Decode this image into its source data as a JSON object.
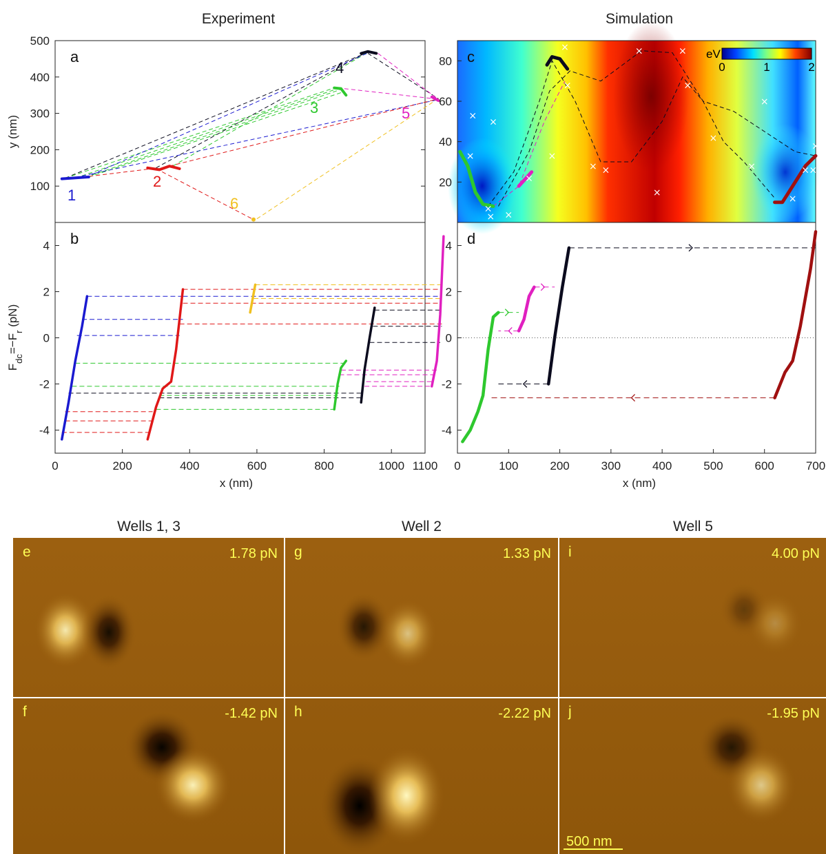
{
  "titles": {
    "experiment": "Experiment",
    "simulation": "Simulation"
  },
  "colors": {
    "blue": "#1a1ad0",
    "red": "#e01818",
    "green": "#2ec82e",
    "black": "#0b0b1e",
    "magenta": "#e020c0",
    "yellow": "#f0c020",
    "darkred": "#a01010",
    "afm_mid": "#9a5e0c"
  },
  "panel_labels": {
    "a": "a",
    "b": "b",
    "c": "c",
    "d": "d"
  },
  "axes": {
    "a_ylabel": "y (nm)",
    "b_ylabel_main": "F",
    "b_ylabel_sub1": "dc",
    "b_ylabel_mid": "=−F",
    "b_ylabel_sub2": "r",
    "b_ylabel_tail": " (pN)",
    "x_label_left": "x (nm)",
    "x_label_right": "x (nm)"
  },
  "colorbar": {
    "unit": "eV",
    "ticks": [
      "0",
      "1",
      "2"
    ]
  },
  "image_panels": {
    "col_titles": [
      "Wells 1, 3",
      "Well 2",
      "Well 5"
    ],
    "panels": [
      {
        "label": "e",
        "force": "1.78 pN"
      },
      {
        "label": "g",
        "force": "1.33 pN"
      },
      {
        "label": "i",
        "force": "4.00 pN"
      },
      {
        "label": "f",
        "force": "-1.42 pN"
      },
      {
        "label": "h",
        "force": "-2.22 pN"
      },
      {
        "label": "j",
        "force": "-1.95 pN"
      }
    ],
    "scale_bar": "500 nm"
  },
  "chart_data": [
    {
      "panel": "a",
      "type": "scatter",
      "title": "Experiment",
      "xlabel": "",
      "ylabel": "y (nm)",
      "xlim": [
        0,
        1100
      ],
      "ylim": [
        0,
        500
      ],
      "yticks": [
        100,
        200,
        300,
        400,
        500
      ],
      "wells": [
        {
          "name": "1",
          "color": "blue",
          "points": [
            [
              20,
              120
            ],
            [
              100,
              125
            ]
          ]
        },
        {
          "name": "2",
          "color": "red",
          "points": [
            [
              275,
              150
            ],
            [
              310,
              145
            ],
            [
              340,
              155
            ],
            [
              370,
              148
            ]
          ]
        },
        {
          "name": "3",
          "color": "green",
          "points": [
            [
              830,
              370
            ],
            [
              850,
              368
            ],
            [
              865,
              350
            ]
          ]
        },
        {
          "name": "4",
          "color": "black",
          "points": [
            [
              910,
              465
            ],
            [
              930,
              470
            ],
            [
              955,
              465
            ]
          ]
        },
        {
          "name": "5",
          "color": "magenta",
          "points": [
            [
              1120,
              345
            ],
            [
              1140,
              335
            ]
          ]
        },
        {
          "name": "6",
          "color": "yellow",
          "points": [
            [
              590,
              8
            ]
          ]
        }
      ],
      "transitions": [
        {
          "color": "black",
          "from": [
            30,
            122
          ],
          "to": [
            930,
            468
          ]
        },
        {
          "color": "black",
          "from": [
            300,
            150
          ],
          "to": [
            920,
            465
          ]
        },
        {
          "color": "black",
          "from": [
            930,
            465
          ],
          "to": [
            1140,
            340
          ]
        },
        {
          "color": "green",
          "from": [
            30,
            122
          ],
          "to": [
            830,
            370
          ]
        },
        {
          "color": "green",
          "from": [
            60,
            122
          ],
          "to": [
            840,
            368
          ]
        },
        {
          "color": "green",
          "from": [
            90,
            124
          ],
          "to": [
            850,
            366
          ]
        },
        {
          "color": "green",
          "from": [
            100,
            125
          ],
          "to": [
            860,
            360
          ]
        },
        {
          "color": "green",
          "from": [
            350,
            155
          ],
          "to": [
            930,
            468
          ]
        },
        {
          "color": "blue",
          "from": [
            40,
            120
          ],
          "to": [
            1140,
            338
          ]
        },
        {
          "color": "blue",
          "from": [
            90,
            124
          ],
          "to": [
            930,
            466
          ]
        },
        {
          "color": "red",
          "from": [
            40,
            120
          ],
          "to": [
            290,
            148
          ]
        },
        {
          "color": "red",
          "from": [
            340,
            155
          ],
          "to": [
            1140,
            340
          ]
        },
        {
          "color": "red",
          "from": [
            300,
            148
          ],
          "to": [
            590,
            8
          ]
        },
        {
          "color": "magenta",
          "from": [
            860,
            368
          ],
          "to": [
            1130,
            340
          ]
        },
        {
          "color": "magenta",
          "from": [
            960,
            465
          ],
          "to": [
            1140,
            338
          ]
        },
        {
          "color": "yellow",
          "from": [
            600,
            10
          ],
          "to": [
            1130,
            335
          ]
        }
      ]
    },
    {
      "panel": "b",
      "type": "line",
      "xlabel": "x (nm)",
      "ylabel": "F_dc = −F_r (pN)",
      "xlim": [
        0,
        1100
      ],
      "ylim": [
        -5,
        5
      ],
      "xticks": [
        0,
        200,
        400,
        600,
        800,
        1000,
        1100
      ],
      "yticks": [
        -4,
        -2,
        0,
        2,
        4
      ],
      "series": [
        {
          "name": "1",
          "color": "blue",
          "points": [
            [
              20,
              -4.4
            ],
            [
              40,
              -2.8
            ],
            [
              60,
              -1.0
            ],
            [
              80,
              0.5
            ],
            [
              95,
              1.8
            ]
          ]
        },
        {
          "name": "2",
          "color": "red",
          "points": [
            [
              275,
              -4.4
            ],
            [
              300,
              -3.0
            ],
            [
              320,
              -2.2
            ],
            [
              345,
              -1.9
            ],
            [
              360,
              -0.5
            ],
            [
              380,
              2.1
            ]
          ]
        },
        {
          "name": "3",
          "color": "green",
          "points": [
            [
              830,
              -3.1
            ],
            [
              840,
              -2.0
            ],
            [
              850,
              -1.3
            ],
            [
              865,
              -1.0
            ]
          ]
        },
        {
          "name": "4",
          "color": "black",
          "points": [
            [
              910,
              -2.8
            ],
            [
              920,
              -1.4
            ],
            [
              935,
              0.0
            ],
            [
              950,
              1.3
            ]
          ]
        },
        {
          "name": "5",
          "color": "magenta",
          "points": [
            [
              1120,
              -2.1
            ],
            [
              1135,
              -1.0
            ],
            [
              1145,
              1.0
            ],
            [
              1155,
              4.4
            ]
          ]
        },
        {
          "name": "6",
          "color": "yellow",
          "points": [
            [
              580,
              1.1
            ],
            [
              595,
              2.3
            ]
          ]
        }
      ],
      "hlines": [
        {
          "color": "blue",
          "y": 1.8,
          "x0": 95,
          "x1": 380
        },
        {
          "color": "blue",
          "y": 0.8,
          "x0": 80,
          "x1": 380
        },
        {
          "color": "blue",
          "y": 0.1,
          "x0": 65,
          "x1": 370
        },
        {
          "color": "blue",
          "y": 1.8,
          "x0": 380,
          "x1": 1150
        },
        {
          "color": "red",
          "y": 2.1,
          "x0": 380,
          "x1": 1150
        },
        {
          "color": "red",
          "y": 1.5,
          "x0": 380,
          "x1": 1150
        },
        {
          "color": "red",
          "y": 0.6,
          "x0": 370,
          "x1": 1150
        },
        {
          "color": "red",
          "y": -3.2,
          "x0": 30,
          "x1": 290
        },
        {
          "color": "red",
          "y": -3.6,
          "x0": 30,
          "x1": 290
        },
        {
          "color": "red",
          "y": -4.1,
          "x0": 20,
          "x1": 285
        },
        {
          "color": "yellow",
          "y": 2.3,
          "x0": 595,
          "x1": 1150
        },
        {
          "color": "yellow",
          "y": 1.7,
          "x0": 590,
          "x1": 1150
        },
        {
          "color": "green",
          "y": -1.1,
          "x0": 60,
          "x1": 865
        },
        {
          "color": "green",
          "y": -2.1,
          "x0": 50,
          "x1": 845
        },
        {
          "color": "green",
          "y": -2.5,
          "x0": 310,
          "x1": 840
        },
        {
          "color": "green",
          "y": -3.1,
          "x0": 300,
          "x1": 830
        },
        {
          "color": "black",
          "y": -2.4,
          "x0": 40,
          "x1": 915
        },
        {
          "color": "black",
          "y": -2.6,
          "x0": 310,
          "x1": 910
        },
        {
          "color": "black",
          "y": 1.2,
          "x0": 950,
          "x1": 1150
        },
        {
          "color": "black",
          "y": 0.5,
          "x0": 945,
          "x1": 1150
        },
        {
          "color": "black",
          "y": -0.2,
          "x0": 935,
          "x1": 1145
        },
        {
          "color": "magenta",
          "y": -1.4,
          "x0": 850,
          "x1": 1135
        },
        {
          "color": "magenta",
          "y": -1.6,
          "x0": 845,
          "x1": 1130
        },
        {
          "color": "magenta",
          "y": -2.1,
          "x0": 920,
          "x1": 1120
        },
        {
          "color": "magenta",
          "y": -1.9,
          "x0": 925,
          "x1": 1125
        }
      ]
    },
    {
      "panel": "c",
      "type": "heatmap",
      "title": "Simulation",
      "xlim": [
        0,
        700
      ],
      "ylim": [
        0,
        90
      ],
      "yticks": [
        20,
        40,
        60,
        80
      ],
      "colorbar": {
        "label": "eV",
        "range": [
          0,
          2
        ],
        "ticks": [
          0,
          1,
          2
        ]
      },
      "paths": [
        {
          "color": "green",
          "points": [
            [
              5,
              35
            ],
            [
              20,
              28
            ],
            [
              35,
              15
            ],
            [
              50,
              9
            ],
            [
              70,
              8
            ]
          ]
        },
        {
          "color": "magenta",
          "points": [
            [
              120,
              18
            ],
            [
              145,
              25
            ]
          ]
        },
        {
          "color": "black",
          "points": [
            [
              175,
              78
            ],
            [
              185,
              82
            ],
            [
              200,
              81
            ],
            [
              215,
              76
            ]
          ]
        },
        {
          "color": "darkred",
          "points": [
            [
              620,
              10
            ],
            [
              635,
              10
            ],
            [
              655,
              18
            ],
            [
              680,
              28
            ],
            [
              700,
              33
            ]
          ]
        }
      ],
      "dashed_paths": [
        {
          "color": "black",
          "points": [
            [
              60,
              8
            ],
            [
              110,
              25
            ],
            [
              160,
              60
            ],
            [
              185,
              80
            ],
            [
              230,
              60
            ],
            [
              280,
              30
            ],
            [
              340,
              30
            ],
            [
              400,
              50
            ],
            [
              440,
              72
            ],
            [
              480,
              60
            ],
            [
              520,
              40
            ],
            [
              560,
              30
            ],
            [
              620,
              12
            ]
          ]
        },
        {
          "color": "black",
          "points": [
            [
              80,
              8
            ],
            [
              140,
              35
            ],
            [
              180,
              65
            ],
            [
              220,
              75
            ],
            [
              280,
              70
            ],
            [
              360,
              85
            ],
            [
              420,
              84
            ],
            [
              480,
              60
            ],
            [
              540,
              55
            ],
            [
              600,
              45
            ],
            [
              660,
              35
            ],
            [
              700,
              33
            ]
          ]
        },
        {
          "color": "magenta",
          "points": [
            [
              70,
              8
            ],
            [
              120,
              18
            ],
            [
              170,
              50
            ],
            [
              210,
              70
            ]
          ]
        }
      ],
      "markers": [
        [
          30,
          53
        ],
        [
          70,
          50
        ],
        [
          25,
          33
        ],
        [
          60,
          7
        ],
        [
          65,
          3
        ],
        [
          100,
          4
        ],
        [
          140,
          22
        ],
        [
          210,
          87
        ],
        [
          215,
          68
        ],
        [
          185,
          33
        ],
        [
          265,
          28
        ],
        [
          290,
          26
        ],
        [
          390,
          15
        ],
        [
          355,
          85
        ],
        [
          440,
          85
        ],
        [
          450,
          68
        ],
        [
          500,
          42
        ],
        [
          575,
          28
        ],
        [
          600,
          60
        ],
        [
          655,
          12
        ],
        [
          680,
          26
        ],
        [
          695,
          26
        ],
        [
          700,
          38
        ]
      ]
    },
    {
      "panel": "d",
      "type": "line",
      "xlabel": "x (nm)",
      "xlim": [
        0,
        700
      ],
      "ylim": [
        -5,
        5
      ],
      "xticks": [
        0,
        100,
        200,
        300,
        400,
        500,
        600,
        700
      ],
      "yticks": [
        -4,
        -2,
        0,
        2,
        4
      ],
      "series": [
        {
          "color": "green",
          "points": [
            [
              10,
              -4.5
            ],
            [
              25,
              -4.0
            ],
            [
              40,
              -3.2
            ],
            [
              50,
              -2.5
            ],
            [
              60,
              -0.5
            ],
            [
              70,
              0.9
            ],
            [
              80,
              1.1
            ]
          ]
        },
        {
          "color": "magenta",
          "points": [
            [
              120,
              0.3
            ],
            [
              130,
              0.8
            ],
            [
              140,
              1.8
            ],
            [
              150,
              2.2
            ]
          ]
        },
        {
          "color": "black",
          "points": [
            [
              178,
              -2.0
            ],
            [
              190,
              0.0
            ],
            [
              205,
              2.2
            ],
            [
              218,
              3.9
            ]
          ]
        },
        {
          "color": "darkred",
          "points": [
            [
              620,
              -2.6
            ],
            [
              640,
              -1.5
            ],
            [
              655,
              -1.0
            ],
            [
              670,
              0.5
            ],
            [
              690,
              3.0
            ],
            [
              700,
              4.6
            ]
          ]
        }
      ],
      "arrows": [
        {
          "color": "black",
          "y": 3.9,
          "x0": 218,
          "x1": 700,
          "direction": "right"
        },
        {
          "color": "green",
          "y": 1.1,
          "x0": 80,
          "x1": 120,
          "direction": "right"
        },
        {
          "color": "magenta",
          "y": 0.3,
          "x0": 120,
          "x1": 80,
          "direction": "left"
        },
        {
          "color": "magenta",
          "y": 2.2,
          "x0": 150,
          "x1": 190,
          "direction": "right"
        },
        {
          "color": "black",
          "y": -2.0,
          "x0": 178,
          "x1": 80,
          "direction": "left"
        },
        {
          "color": "darkred",
          "y": -2.6,
          "x0": 620,
          "x1": 60,
          "direction": "left"
        }
      ],
      "zero_line": true
    }
  ]
}
